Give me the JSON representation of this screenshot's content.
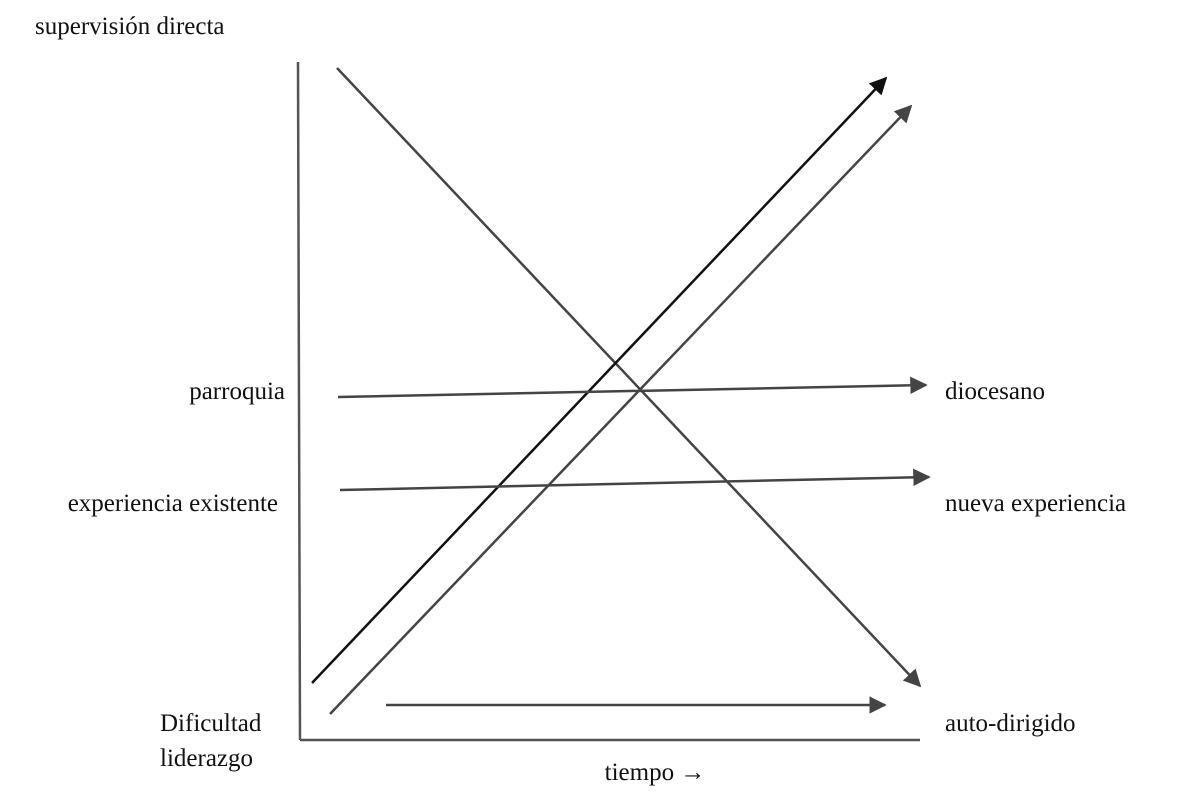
{
  "labels": {
    "top": "supervisión directa",
    "left_1": "parroquia",
    "right_1": "diocesano",
    "left_2": "experiencia existente",
    "right_2": "nueva experiencia",
    "left_3": [
      "Dificultad",
      "liderazgo"
    ],
    "right_3": "auto-dirigido",
    "x_axis": "tiempo →"
  }
}
